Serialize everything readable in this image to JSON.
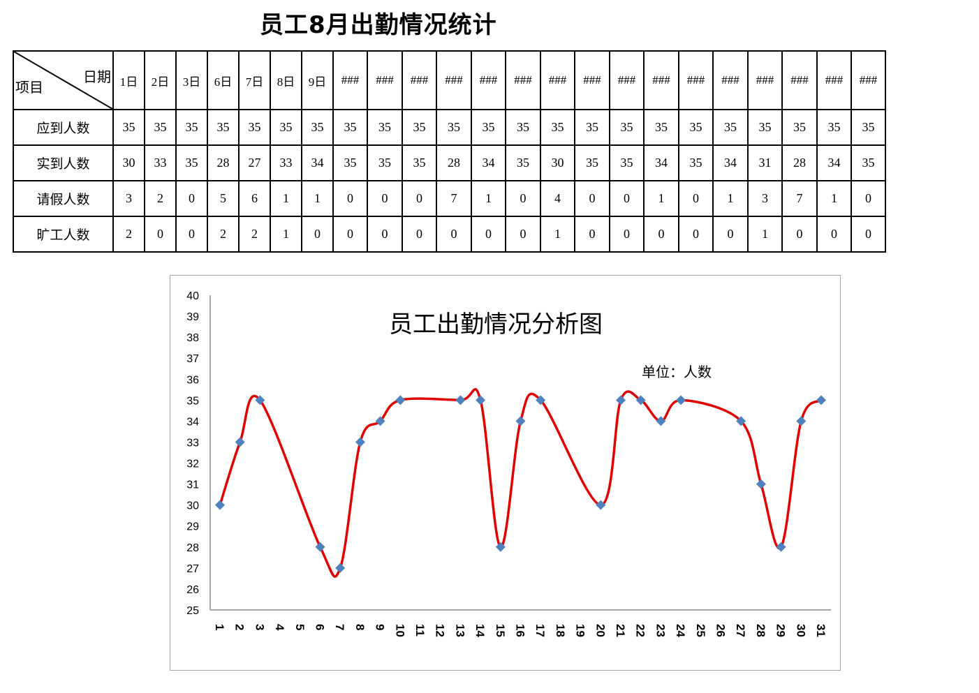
{
  "title": "员工8月出勤情况统计",
  "table": {
    "corner_date": "日期",
    "corner_item": "项目",
    "days": [
      "1日",
      "2日",
      "3日",
      "6日",
      "7日",
      "8日",
      "9日",
      "###",
      "###",
      "###",
      "###",
      "###",
      "###",
      "###",
      "###",
      "###",
      "###",
      "###",
      "###",
      "###",
      "###",
      "###",
      "###"
    ],
    "rows": [
      {
        "label": "应到人数",
        "values": [
          35,
          35,
          35,
          35,
          35,
          35,
          35,
          35,
          35,
          35,
          35,
          35,
          35,
          35,
          35,
          35,
          35,
          35,
          35,
          35,
          35,
          35,
          35
        ]
      },
      {
        "label": "实到人数",
        "values": [
          30,
          33,
          35,
          28,
          27,
          33,
          34,
          35,
          35,
          35,
          28,
          34,
          35,
          30,
          35,
          35,
          34,
          35,
          34,
          31,
          28,
          34,
          35
        ]
      },
      {
        "label": "请假人数",
        "values": [
          3,
          2,
          0,
          5,
          6,
          1,
          1,
          0,
          0,
          0,
          7,
          1,
          0,
          4,
          0,
          0,
          1,
          0,
          1,
          3,
          7,
          1,
          0
        ]
      },
      {
        "label": "旷工人数",
        "values": [
          2,
          0,
          0,
          2,
          2,
          1,
          0,
          0,
          0,
          0,
          0,
          0,
          0,
          1,
          0,
          0,
          0,
          0,
          0,
          1,
          0,
          0,
          0
        ]
      }
    ]
  },
  "chart_data": {
    "type": "line",
    "title": "员工出勤情况分析图",
    "annotation": "单位：人数",
    "ylim": [
      25,
      40
    ],
    "yticks": [
      25,
      26,
      27,
      28,
      29,
      30,
      31,
      32,
      33,
      34,
      35,
      36,
      37,
      38,
      39,
      40
    ],
    "xlim": [
      1,
      31
    ],
    "xtick_labels": [
      "1",
      "2",
      "3",
      "4",
      "5",
      "6",
      "7",
      "8",
      "9",
      "10",
      "11",
      "12",
      "13",
      "14",
      "15",
      "16",
      "17",
      "18",
      "19",
      "20",
      "21",
      "22",
      "23",
      "24",
      "25",
      "26",
      "27",
      "28",
      "29",
      "30",
      "31"
    ],
    "grid": false,
    "smooth": true,
    "line_color": "#e00000",
    "marker_color": "#4f81bd",
    "marker": "diamond",
    "series": [
      {
        "x": [
          1,
          2,
          3,
          6,
          7,
          8,
          9,
          10,
          13,
          14,
          15,
          16,
          17,
          20,
          21,
          22,
          23,
          24,
          27,
          28,
          29,
          30,
          31
        ],
        "values": [
          30,
          33,
          35,
          28,
          27,
          33,
          34,
          35,
          35,
          35,
          28,
          34,
          35,
          30,
          35,
          35,
          34,
          35,
          34,
          31,
          28,
          34,
          35
        ]
      }
    ]
  }
}
